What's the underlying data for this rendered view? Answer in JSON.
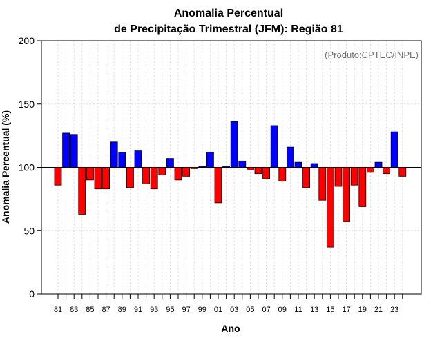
{
  "chart_data": {
    "type": "bar",
    "title_line1": "Anomalia Percentual",
    "title_line2": "de Precipitação Trimestral (JFM): Região 81",
    "credit": "(Produto:CPTEC/INPE)",
    "xlabel": "Ano",
    "ylabel": "Anomalia Percentual (%)",
    "ylim": [
      0,
      200
    ],
    "yticks": [
      0,
      50,
      100,
      150,
      200
    ],
    "baseline": 100,
    "grid": true,
    "above_color": "#0000ff",
    "below_color": "#ff0000",
    "years": [
      1981,
      1982,
      1983,
      1984,
      1985,
      1986,
      1987,
      1988,
      1989,
      1990,
      1991,
      1992,
      1993,
      1994,
      1995,
      1996,
      1997,
      1998,
      1999,
      2000,
      2001,
      2002,
      2003,
      2004,
      2005,
      2006,
      2007,
      2008,
      2009,
      2010,
      2011,
      2012,
      2013,
      2014,
      2015,
      2016,
      2017,
      2018,
      2019,
      2020,
      2021,
      2022,
      2023,
      2024
    ],
    "categories": [
      "81",
      "82",
      "83",
      "84",
      "85",
      "86",
      "87",
      "88",
      "89",
      "90",
      "91",
      "92",
      "93",
      "94",
      "95",
      "96",
      "97",
      "98",
      "99",
      "00",
      "01",
      "02",
      "03",
      "04",
      "05",
      "06",
      "07",
      "08",
      "09",
      "10",
      "11",
      "12",
      "13",
      "14",
      "15",
      "16",
      "17",
      "18",
      "19",
      "20",
      "21",
      "22",
      "23",
      "24"
    ],
    "tick_labels": [
      "81",
      "83",
      "85",
      "87",
      "89",
      "91",
      "93",
      "95",
      "97",
      "99",
      "01",
      "03",
      "05",
      "07",
      "09",
      "11",
      "13",
      "15",
      "17",
      "19",
      "21",
      "23"
    ],
    "values": [
      86,
      127,
      126,
      63,
      90,
      83,
      83,
      120,
      112,
      84,
      113,
      87,
      83,
      94,
      107,
      90,
      93,
      99,
      101,
      112,
      72,
      101,
      136,
      105,
      98,
      95,
      91,
      133,
      89,
      116,
      104,
      84,
      103,
      74,
      37,
      85,
      57,
      86,
      69,
      96,
      104,
      95,
      128,
      93
    ]
  }
}
